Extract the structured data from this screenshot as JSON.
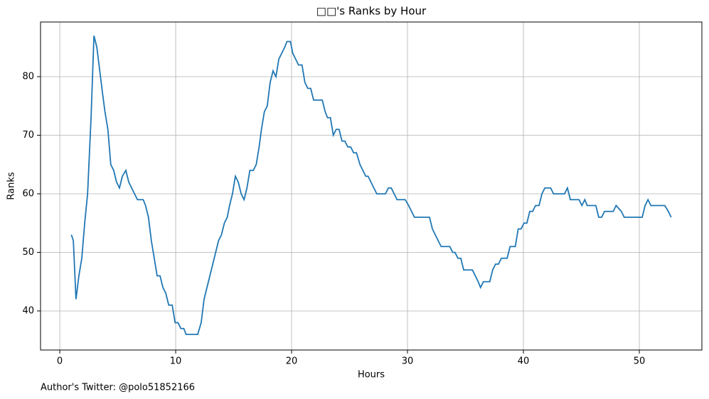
{
  "chart_data": {
    "type": "line",
    "title": "□□'s Ranks by Hour",
    "x_label": "Hours",
    "y_label": "Ranks",
    "footnote": "Author's Twitter: @polo51852166",
    "x": [
      1.0,
      1.17,
      1.4,
      1.65,
      1.9,
      2.15,
      2.4,
      2.7,
      2.95,
      3.2,
      3.45,
      3.7,
      3.9,
      4.15,
      4.4,
      4.65,
      4.9,
      5.15,
      5.4,
      5.7,
      5.95,
      6.2,
      6.45,
      6.7,
      7.2,
      7.4,
      7.65,
      7.9,
      8.15,
      8.4,
      8.65,
      8.9,
      9.15,
      9.4,
      9.7,
      9.95,
      10.2,
      10.45,
      10.7,
      10.9,
      11.9,
      12.2,
      12.45,
      12.7,
      12.95,
      13.2,
      13.45,
      13.7,
      13.95,
      14.2,
      14.45,
      14.65,
      14.9,
      15.15,
      15.4,
      15.65,
      15.9,
      16.15,
      16.4,
      16.7,
      16.95,
      17.2,
      17.4,
      17.65,
      17.9,
      18.15,
      18.4,
      18.65,
      18.9,
      19.15,
      19.4,
      19.6,
      19.9,
      20.1,
      20.35,
      20.6,
      20.9,
      21.15,
      21.4,
      21.65,
      21.9,
      22.65,
      22.9,
      23.1,
      23.35,
      23.6,
      23.85,
      24.1,
      24.35,
      24.6,
      24.85,
      25.1,
      25.35,
      25.6,
      25.9,
      26.15,
      26.4,
      26.6,
      26.85,
      27.1,
      27.35,
      28.1,
      28.35,
      28.6,
      28.85,
      29.1,
      29.8,
      30.1,
      30.35,
      30.6,
      31.9,
      32.15,
      32.4,
      32.65,
      32.9,
      33.65,
      33.9,
      34.1,
      34.35,
      34.6,
      34.85,
      35.6,
      35.85,
      36.1,
      36.3,
      36.55,
      37.1,
      37.35,
      37.6,
      37.85,
      38.1,
      38.6,
      38.85,
      39.3,
      39.55,
      39.8,
      40.05,
      40.3,
      40.55,
      40.8,
      41.05,
      41.35,
      41.6,
      41.85,
      42.35,
      42.6,
      43.55,
      43.8,
      44.05,
      44.8,
      45.05,
      45.3,
      45.5,
      46.25,
      46.5,
      46.75,
      47.0,
      47.75,
      48.0,
      48.45,
      48.7,
      50.25,
      50.5,
      50.75,
      51.0,
      52.2,
      52.5,
      52.75
    ],
    "series": [
      {
        "name": "Ranks",
        "color": "#1f77b4",
        "values": [
          53,
          52,
          42,
          46,
          49,
          55,
          60,
          73,
          87,
          85,
          81,
          77,
          74,
          71,
          65,
          64,
          62,
          61,
          63,
          64,
          62,
          61,
          60,
          59,
          59,
          58,
          56,
          52,
          49,
          46,
          46,
          44,
          43,
          41,
          41,
          38,
          38,
          37,
          37,
          36,
          36,
          38,
          42,
          44,
          46,
          48,
          50,
          52,
          53,
          55,
          56,
          58,
          60,
          63,
          62,
          60,
          59,
          61,
          64,
          64,
          65,
          68,
          71,
          74,
          75,
          79,
          81,
          80,
          83,
          84,
          85,
          86,
          86,
          84,
          83,
          82,
          82,
          79,
          78,
          78,
          76,
          76,
          74,
          73,
          73,
          70,
          71,
          71,
          69,
          69,
          68,
          68,
          67,
          67,
          65,
          64,
          63,
          63,
          62,
          61,
          60,
          60,
          61,
          61,
          60,
          59,
          59,
          58,
          57,
          56,
          56,
          54,
          53,
          52,
          51,
          51,
          50,
          50,
          49,
          49,
          47,
          47,
          46,
          45,
          44,
          45,
          45,
          47,
          48,
          48,
          49,
          49,
          51,
          51,
          54,
          54,
          55,
          55,
          57,
          57,
          58,
          58,
          60,
          61,
          61,
          60,
          60,
          61,
          59,
          59,
          58,
          59,
          58,
          58,
          56,
          56,
          57,
          57,
          58,
          57,
          56,
          56,
          58,
          59,
          58,
          58,
          57,
          56
        ]
      }
    ],
    "xlim": [
      -1.66,
      55.4
    ],
    "ylim": [
      33.33,
      89.33
    ],
    "xticks": [
      0,
      10,
      20,
      30,
      40,
      50
    ],
    "yticks": [
      40,
      50,
      60,
      70,
      80
    ],
    "grid": true
  }
}
